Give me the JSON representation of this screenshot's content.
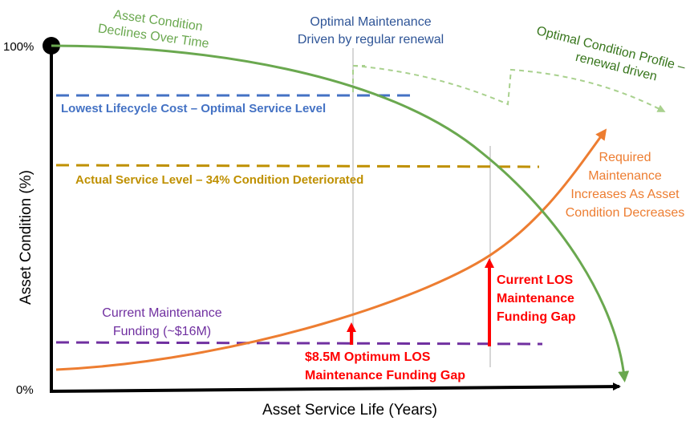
{
  "axes": {
    "y_title": "Asset Condition (%)",
    "x_title": "Asset Service Life (Years)",
    "y_top_tick": "100%",
    "y_bottom_tick": "0%"
  },
  "labels": {
    "asset_condition_line1": "Asset Condition",
    "asset_condition_line2": "Declines Over Time",
    "optimal_maintenance_line1": "Optimal Maintenance",
    "optimal_maintenance_line2": "Driven by regular renewal",
    "optimal_profile_line1": "Optimal Condition Profile –",
    "optimal_profile_line2": "renewal driven",
    "lowest_lifecycle": "Lowest Lifecycle Cost – Optimal Service Level",
    "actual_service": "Actual Service Level – 34% Condition Deteriorated",
    "required_line1": "Required",
    "required_line2": "Maintenance",
    "required_line3": "Increases As Asset",
    "required_line4": "Condition Decreases",
    "current_funding_line1": "Current Maintenance",
    "current_funding_line2": "Funding (~$16M)",
    "current_gap_line1": "Current LOS",
    "current_gap_line2": "Maintenance",
    "current_gap_line3": "Funding Gap",
    "optimum_gap_line1": "$8.5M Optimum LOS",
    "optimum_gap_line2": "Maintenance Funding Gap"
  },
  "colors": {
    "green": "#6aa84f",
    "light_green": "#93c47d",
    "dark_green": "#38761d",
    "blue": "#4472c4",
    "gold": "#bf9000",
    "orange": "#ed7d31",
    "purple": "#7030a0",
    "red": "#ff0000",
    "axis": "#000000"
  }
}
